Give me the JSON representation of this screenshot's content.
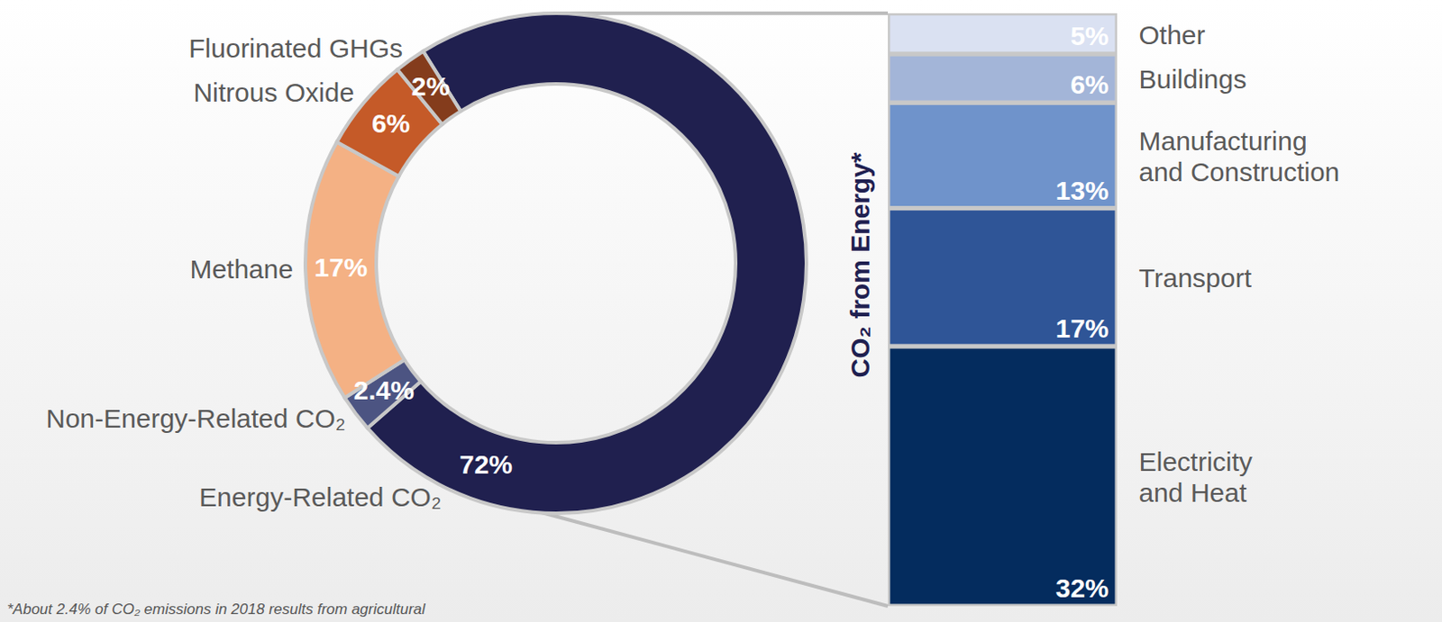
{
  "chart_data": [
    {
      "type": "pie",
      "categories": [
        "Energy-Related CO₂",
        "Non-Energy-Related CO₂",
        "Methane",
        "Nitrous Oxide",
        "Fluorinated GHGs"
      ],
      "values": [
        72,
        2.4,
        17,
        6,
        2
      ],
      "value_labels": [
        "72%",
        "2.4%",
        "17%",
        "6%",
        "2%"
      ],
      "colors": [
        "#20204f",
        "#4c5482",
        "#f4b184",
        "#c55a28",
        "#843c1c"
      ],
      "data_labels": true
    },
    {
      "type": "bar",
      "stacked": true,
      "ylabel": "CO₂ from Energy*",
      "categories": [
        "Electricity and Heat",
        "Transport",
        "Manufacturing and Construction",
        "Buildings",
        "Other"
      ],
      "values": [
        32,
        17,
        13,
        6,
        5
      ],
      "value_labels": [
        "32%",
        "17%",
        "13%",
        "6%",
        "5%"
      ],
      "colors": [
        "#042c5e",
        "#2f5597",
        "#6f93cb",
        "#a3b5d8",
        "#dae1f2"
      ],
      "ylim": [
        0,
        73
      ],
      "tick_labels": false,
      "data_labels": true,
      "annotations": [
        "*About 2.4% of CO₂ emissions in 2018 results from agricultural"
      ]
    }
  ]
}
